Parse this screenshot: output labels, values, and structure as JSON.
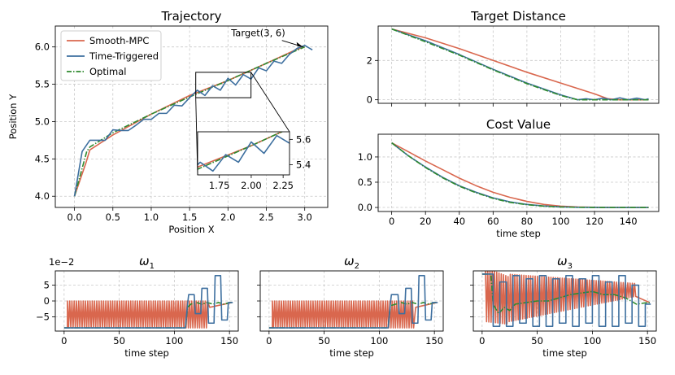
{
  "colors": {
    "smooth_mpc": "#d9674e",
    "time_triggered": "#3d6f9f",
    "optimal": "#2f8a2f"
  },
  "chart_data": [
    {
      "id": "trajectory",
      "type": "line",
      "title": "Trajectory",
      "xlabel": "Position X",
      "ylabel": "Position Y",
      "xlim": [
        -0.25,
        3.3
      ],
      "ylim": [
        3.85,
        6.28
      ],
      "xticks": [
        "0.0",
        "0.5",
        "1.0",
        "1.5",
        "2.0",
        "2.5",
        "3.0"
      ],
      "yticks": [
        "4.0",
        "4.5",
        "5.0",
        "5.5",
        "6.0"
      ],
      "legend": [
        "Smooth-MPC",
        "Time-Triggered",
        "Optimal"
      ],
      "legend_position": "top-left",
      "annotation": {
        "text": "Target(3, 6)",
        "point": [
          3.0,
          6.0
        ]
      },
      "series": [
        {
          "name": "Smooth-MPC",
          "x": [
            0,
            0.15,
            0.2,
            0.5,
            1.0,
            1.5,
            2.0,
            2.5,
            2.9,
            3.0
          ],
          "y": [
            4.0,
            4.45,
            4.62,
            4.82,
            5.1,
            5.35,
            5.55,
            5.78,
            5.97,
            6.0
          ]
        },
        {
          "name": "Optimal",
          "x": [
            0,
            0.08,
            0.16,
            0.2,
            0.5,
            1.0,
            1.5,
            2.0,
            2.5,
            3.0
          ],
          "y": [
            4.0,
            4.3,
            4.6,
            4.66,
            4.85,
            5.1,
            5.33,
            5.55,
            5.78,
            6.0
          ]
        },
        {
          "name": "Time-Triggered",
          "x": [
            0,
            0.1,
            0.2,
            0.3,
            0.4,
            0.5,
            0.6,
            0.7,
            0.8,
            0.9,
            1.0,
            1.1,
            1.2,
            1.3,
            1.4,
            1.5,
            1.6,
            1.7,
            1.8,
            1.9,
            2.0,
            2.1,
            2.2,
            2.3,
            2.4,
            2.5,
            2.6,
            2.7,
            2.8,
            2.9,
            3.0,
            3.1
          ],
          "y": [
            4.0,
            4.6,
            4.75,
            4.75,
            4.75,
            4.89,
            4.88,
            4.88,
            4.95,
            5.03,
            5.03,
            5.11,
            5.11,
            5.22,
            5.21,
            5.32,
            5.42,
            5.35,
            5.48,
            5.42,
            5.58,
            5.49,
            5.63,
            5.57,
            5.72,
            5.68,
            5.81,
            5.78,
            5.9,
            5.98,
            6.02,
            5.96
          ]
        }
      ],
      "inset": {
        "xlim": [
          1.58,
          2.3
        ],
        "ylim": [
          5.32,
          5.66
        ],
        "xticks": [
          "1.75",
          "2.00",
          "2.25"
        ],
        "yticks": [
          "5.4",
          "5.6"
        ]
      }
    },
    {
      "id": "target_distance",
      "type": "line",
      "title": "Target Distance",
      "xlim": [
        -8,
        158
      ],
      "ylim": [
        -0.18,
        3.75
      ],
      "yticks": [
        "0",
        "2"
      ],
      "series": [
        {
          "name": "Smooth-MPC",
          "x": [
            0,
            20,
            40,
            60,
            80,
            100,
            120,
            128,
            135,
            140,
            145,
            150,
            152
          ],
          "y": [
            3.6,
            3.15,
            2.6,
            2.0,
            1.4,
            0.85,
            0.3,
            0.05,
            0.0,
            0.0,
            0.0,
            0.0,
            0.0
          ]
        },
        {
          "name": "Time-Triggered",
          "x": [
            0,
            20,
            40,
            60,
            80,
            100,
            110,
            115,
            120,
            125,
            130,
            135,
            140,
            145,
            150,
            152
          ],
          "y": [
            3.6,
            3.0,
            2.3,
            1.55,
            0.85,
            0.25,
            0.0,
            0.05,
            0.0,
            0.08,
            0.0,
            0.1,
            0.0,
            0.08,
            0.0,
            0.05
          ]
        },
        {
          "name": "Optimal",
          "x": [
            0,
            20,
            40,
            60,
            80,
            100,
            110,
            120,
            130,
            140,
            150,
            152
          ],
          "y": [
            3.6,
            2.95,
            2.27,
            1.52,
            0.82,
            0.22,
            0.0,
            0.0,
            0.0,
            0.0,
            0.0,
            0.0
          ]
        }
      ]
    },
    {
      "id": "cost_value",
      "type": "line",
      "title": "Cost Value",
      "xlabel": "time step",
      "xlim": [
        -8,
        158
      ],
      "ylim": [
        -0.08,
        1.45
      ],
      "xticks": [
        "0",
        "20",
        "40",
        "60",
        "80",
        "100",
        "120",
        "140"
      ],
      "yticks": [
        "0.0",
        "0.5",
        "1.0"
      ],
      "series": [
        {
          "name": "Smooth-MPC",
          "x": [
            0,
            10,
            20,
            30,
            40,
            50,
            60,
            70,
            80,
            90,
            100,
            110,
            120,
            130,
            140,
            152
          ],
          "y": [
            1.28,
            1.1,
            0.92,
            0.75,
            0.58,
            0.43,
            0.3,
            0.2,
            0.12,
            0.06,
            0.025,
            0.01,
            0.003,
            0.0,
            0.0,
            0.0
          ]
        },
        {
          "name": "Time-Triggered",
          "x": [
            0,
            10,
            20,
            30,
            40,
            50,
            60,
            70,
            80,
            90,
            100,
            110,
            120,
            130,
            140,
            152
          ],
          "y": [
            1.28,
            1.02,
            0.8,
            0.6,
            0.43,
            0.3,
            0.19,
            0.11,
            0.06,
            0.03,
            0.012,
            0.004,
            0.001,
            0.0,
            0.0,
            0.0
          ]
        },
        {
          "name": "Optimal",
          "x": [
            0,
            10,
            20,
            30,
            40,
            50,
            60,
            70,
            80,
            90,
            100,
            110,
            120,
            130,
            140,
            152
          ],
          "y": [
            1.28,
            1.02,
            0.79,
            0.59,
            0.42,
            0.29,
            0.18,
            0.1,
            0.055,
            0.025,
            0.01,
            0.003,
            0.0,
            0.0,
            0.0,
            0.0
          ]
        }
      ]
    },
    {
      "id": "omega1",
      "type": "line",
      "title": "ω",
      "title_sub": "1",
      "xlabel": "time step",
      "offset_label": "1e−2",
      "xlim": [
        -8,
        158
      ],
      "ylim": [
        -9.5,
        9.5
      ],
      "xticks": [
        "0",
        "50",
        "100",
        "150"
      ],
      "yticks": [
        "5",
        "0",
        "−5"
      ],
      "series": [
        {
          "name": "Smooth-MPC",
          "pattern": "oscillation",
          "start": 3,
          "end": 131,
          "period": 2.05,
          "low": -8.5,
          "high": 0
        },
        {
          "name": "Optimal",
          "x": [
            0,
            110,
            112,
            115,
            120,
            125,
            130,
            135,
            140,
            145,
            150,
            152
          ],
          "y": [
            -8.5,
            -8.5,
            -2,
            -1,
            -0.5,
            -1,
            -0.5,
            -1,
            -0.5,
            -1,
            -0.5,
            -0.5
          ]
        },
        {
          "name": "Time-Triggered",
          "x": [
            0,
            110,
            112,
            113,
            118,
            119,
            124,
            125,
            130,
            131,
            136,
            137,
            142,
            143,
            148,
            149,
            153
          ],
          "y": [
            -8.5,
            -8.5,
            -1,
            2,
            2,
            -4,
            -4,
            4,
            4,
            -7,
            -7,
            8,
            8,
            -6,
            -6,
            -0.5,
            -0.5
          ]
        }
      ]
    },
    {
      "id": "omega2",
      "type": "line",
      "title": "ω",
      "title_sub": "2",
      "xlabel": "time step",
      "xlim": [
        -8,
        158
      ],
      "ylim": [
        -9.5,
        9.5
      ],
      "xticks": [
        "0",
        "50",
        "100",
        "150"
      ],
      "series": [
        {
          "name": "Smooth-MPC",
          "pattern": "oscillation",
          "start": 3,
          "end": 132,
          "period": 2.05,
          "low": -8.5,
          "high": 0
        },
        {
          "name": "Optimal",
          "x": [
            0,
            108,
            110,
            115,
            120,
            125,
            130,
            135,
            140,
            145,
            150,
            152
          ],
          "y": [
            -8.5,
            -8.5,
            -1.5,
            -1,
            -0.5,
            -1,
            -0.5,
            -1,
            -0.5,
            -1,
            -0.5,
            -0.5
          ]
        },
        {
          "name": "Time-Triggered",
          "x": [
            0,
            108,
            110,
            111,
            117,
            118,
            123,
            124,
            129,
            130,
            135,
            136,
            141,
            142,
            147,
            148,
            153
          ],
          "y": [
            -8.5,
            -8.5,
            -1,
            2,
            2,
            -4,
            -4,
            4,
            4,
            -7,
            -7,
            8,
            8,
            -6,
            -6,
            -0.5,
            -0.5
          ]
        }
      ]
    },
    {
      "id": "omega3",
      "type": "line",
      "title": "ω",
      "title_sub": "3",
      "xlabel": "time step",
      "xlim": [
        -8,
        158
      ],
      "ylim": [
        -9.5,
        9.5
      ],
      "xticks": [
        "0",
        "50",
        "100",
        "150"
      ],
      "series": [
        {
          "name": "Smooth-MPC",
          "pattern": "ramp_oscillation",
          "start": 3,
          "end": 140,
          "period": 2.05
        },
        {
          "name": "Optimal",
          "x": [
            0,
            8,
            10,
            15,
            20,
            25,
            30,
            40,
            50,
            60,
            70,
            80,
            90,
            100,
            110,
            120,
            130,
            140,
            150,
            152
          ],
          "y": [
            8.5,
            8.5,
            -1,
            -4,
            -2,
            -3,
            -1,
            -0.5,
            0,
            0,
            1,
            2,
            2.5,
            3,
            2,
            2,
            1,
            -1,
            -0.5,
            -0.5
          ]
        },
        {
          "name": "Time-Triggered",
          "x": [
            0,
            10,
            10.01,
            16,
            16.01,
            22,
            22.01,
            28,
            28.01,
            34,
            34.01,
            40,
            40.01,
            46,
            46.01,
            52,
            52.01,
            58,
            58.01,
            64,
            64.01,
            70,
            70.01,
            76,
            76.01,
            82,
            82.01,
            88,
            88.01,
            94,
            94.01,
            100,
            100.01,
            106,
            106.01,
            112,
            112.01,
            118,
            118.01,
            124,
            124.01,
            130,
            130.01,
            136,
            136.01,
            142,
            142.01,
            148,
            148.01,
            153
          ],
          "y": [
            8.5,
            8.5,
            -8,
            -8,
            6,
            6,
            -8,
            -8,
            8,
            8,
            -7,
            -7,
            7,
            7,
            -8,
            -8,
            8,
            8,
            -8,
            -8,
            7,
            7,
            -7,
            -7,
            8,
            8,
            -8,
            -8,
            7,
            7,
            -7,
            -7,
            8,
            8,
            -8,
            -8,
            6,
            6,
            -8,
            -8,
            8,
            8,
            -7,
            -7,
            5,
            5,
            -8,
            -8,
            -1,
            -1
          ]
        }
      ]
    }
  ]
}
